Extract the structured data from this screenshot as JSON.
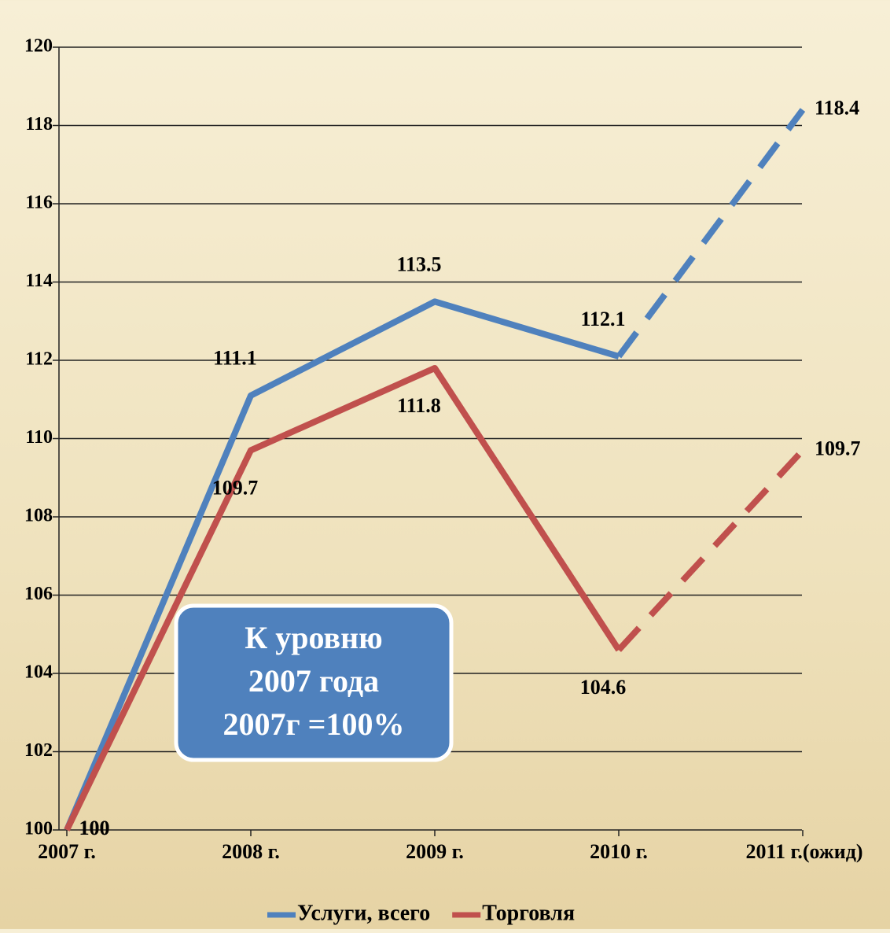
{
  "chart_data": {
    "type": "line",
    "categories": [
      "2007 г.",
      "2008 г.",
      "2009 г.",
      "2010 г.",
      "2011 г.(ожид)"
    ],
    "series": [
      {
        "name": "Услуги, всего",
        "color": "#4f81bd",
        "values": [
          100,
          111.1,
          113.5,
          112.1,
          118.4
        ]
      },
      {
        "name": "Торговля",
        "color": "#c0504d",
        "values": [
          100,
          109.7,
          111.8,
          104.6,
          109.7
        ]
      }
    ],
    "dashed_from_index": 3,
    "ylim": [
      100,
      120
    ],
    "yticks": [
      100,
      102,
      104,
      106,
      108,
      110,
      112,
      114,
      116,
      118,
      120
    ],
    "grid": true,
    "legend": "bottom",
    "annotation": [
      "К уровню",
      "2007 года",
      "2007г =100%"
    ]
  }
}
